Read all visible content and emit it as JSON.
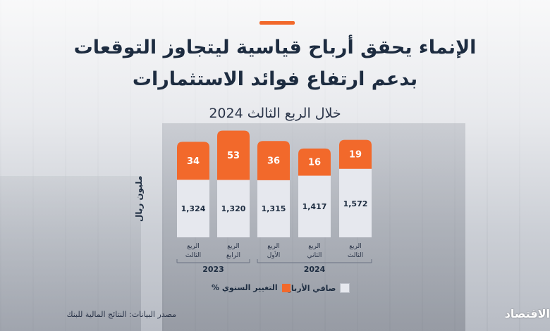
{
  "title_line1": "الإنماء يحقق أرباح قياسية ليتجاوز التوقعات",
  "title_line2": "بدعم ارتفاع فوائد الاستثمارات",
  "subtitle": "خلال الربع الثالث 2024",
  "legend": {
    "net_profit": "صافي الأرباح",
    "yoy_change": "التغيير السنوي %"
  },
  "source": "مصدر البيانات: النتائج المالية للبنك",
  "logo": "الاقتصادية",
  "colors": {
    "accent": "#f2692b",
    "bar": "#e6e8ee",
    "title": "#1d2c40"
  },
  "chart_data": {
    "type": "bar",
    "ylabel": "مليون ريال",
    "categories": [
      {
        "line1": "الربع",
        "line2": "الثالث",
        "year": "2023"
      },
      {
        "line1": "الربع",
        "line2": "الرابع",
        "year": "2023"
      },
      {
        "line1": "الربع",
        "line2": "الأول",
        "year": "2024"
      },
      {
        "line1": "الربع",
        "line2": "الثاني",
        "year": "2024"
      },
      {
        "line1": "الربع",
        "line2": "الثالث",
        "year": "2024"
      }
    ],
    "years": [
      "2023",
      "2024"
    ],
    "series": [
      {
        "name": "صافي الأرباح",
        "values": [
          1324,
          1320,
          1315,
          1417,
          1572
        ],
        "labels": [
          "1,324",
          "1,320",
          "1,315",
          "1,417",
          "1,572"
        ]
      },
      {
        "name": "التغيير السنوي %",
        "values": [
          34,
          53,
          36,
          16,
          19
        ],
        "labels": [
          "34",
          "53",
          "36",
          "16",
          "19"
        ]
      }
    ]
  }
}
